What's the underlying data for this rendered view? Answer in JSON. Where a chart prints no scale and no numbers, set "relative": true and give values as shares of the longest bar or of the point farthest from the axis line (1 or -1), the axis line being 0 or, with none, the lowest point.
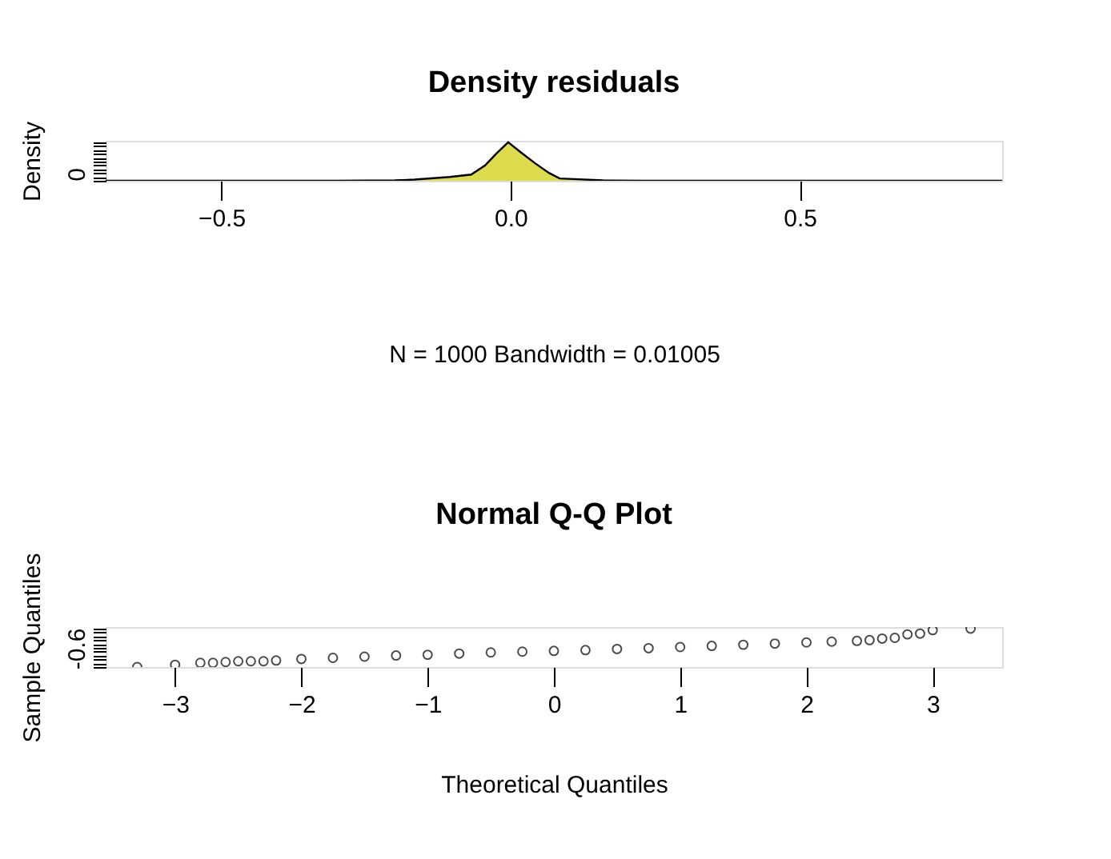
{
  "chart_data": [
    {
      "type": "area",
      "title": "Density residuals",
      "xlabel": "N = 1000   Bandwidth = 0.01005",
      "ylabel": "Density",
      "relative": true,
      "xlim": [
        -0.7,
        0.85
      ],
      "xticks": [
        -0.5,
        {
          "value": 0,
          "label": "0.0"
        },
        0.5
      ],
      "grid": false,
      "annotations": [
        "0"
      ],
      "x": [
        -0.7,
        -0.3,
        -0.2,
        -0.166,
        -0.105,
        -0.068,
        -0.044,
        -0.025,
        -0.004,
        0.017,
        0.042,
        0.067,
        0.085,
        0.16,
        0.23,
        0.85
      ],
      "series": [
        {
          "color": "#cccc00",
          "values": [
            0,
            0,
            0.01,
            0.03,
            0.1,
            0.16,
            0.4,
            0.7,
            1,
            0.75,
            0.46,
            0.2,
            0.06,
            0.01,
            0,
            0
          ]
        }
      ]
    },
    {
      "type": "scatter",
      "title": "Normal Q-Q Plot",
      "xlabel": "Theoretical Quantiles",
      "ylabel": "Sample Quantiles",
      "relative": true,
      "xlim": [
        -3.55,
        3.55
      ],
      "xticks": [
        -3,
        -2,
        -1,
        0,
        1,
        2,
        3
      ],
      "grid": false,
      "marker": "circle",
      "annotations": [
        "-0.6"
      ],
      "x": [
        -3.3,
        -3.0,
        -2.8,
        -2.7,
        -2.6,
        -2.5,
        -2.4,
        -2.3,
        -2.2,
        -2.0,
        -1.75,
        -1.5,
        -1.25,
        -1.0,
        -0.75,
        -0.5,
        -0.25,
        0.0,
        0.25,
        0.5,
        0.75,
        1.0,
        1.25,
        1.5,
        1.75,
        2.0,
        2.2,
        2.4,
        2.5,
        2.6,
        2.7,
        2.8,
        2.9,
        3.0,
        3.3
      ],
      "series": [
        {
          "color": "#000000",
          "values": [
            0,
            0.06,
            0.11,
            0.11,
            0.13,
            0.15,
            0.15,
            0.15,
            0.17,
            0.21,
            0.24,
            0.27,
            0.3,
            0.32,
            0.35,
            0.38,
            0.4,
            0.42,
            0.44,
            0.47,
            0.49,
            0.52,
            0.55,
            0.58,
            0.61,
            0.64,
            0.66,
            0.68,
            0.7,
            0.74,
            0.76,
            0.85,
            0.87,
            0.96,
            1
          ]
        }
      ]
    }
  ]
}
